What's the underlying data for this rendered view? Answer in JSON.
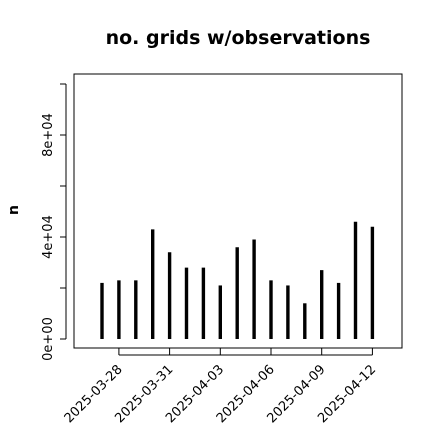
{
  "chart_data": {
    "type": "bar",
    "title": "no. grids w/observations",
    "xlabel": "",
    "ylabel": "n",
    "ylim": [
      0,
      100000
    ],
    "yticks": [
      0,
      40000,
      80000
    ],
    "ytick_labels": [
      "0e+00",
      "4e+04",
      "8e+04"
    ],
    "x": [
      "2025-03-27",
      "2025-03-28",
      "2025-03-29",
      "2025-03-30",
      "2025-03-31",
      "2025-04-01",
      "2025-04-02",
      "2025-04-03",
      "2025-04-04",
      "2025-04-05",
      "2025-04-06",
      "2025-04-07",
      "2025-04-08",
      "2025-04-09",
      "2025-04-10",
      "2025-04-11",
      "2025-04-12"
    ],
    "values": [
      22000,
      23000,
      23000,
      43000,
      34000,
      28000,
      28000,
      21000,
      36000,
      39000,
      23000,
      21000,
      14000,
      27000,
      22000,
      46000,
      44000
    ],
    "xticks": [
      "2025-03-28",
      "2025-03-31",
      "2025-04-03",
      "2025-04-06",
      "2025-04-09",
      "2025-04-12"
    ],
    "xtick_labels": [
      "2025-03-28",
      "2025-03-31",
      "2025-04-03",
      "2025-04-06",
      "2025-04-09",
      "2025-04-12"
    ],
    "xtick_colors": [
      "#000000",
      "#000000",
      "#228B22",
      "#000000",
      "#000000",
      "#000000"
    ],
    "bar_color": "#000000",
    "grid": false
  }
}
